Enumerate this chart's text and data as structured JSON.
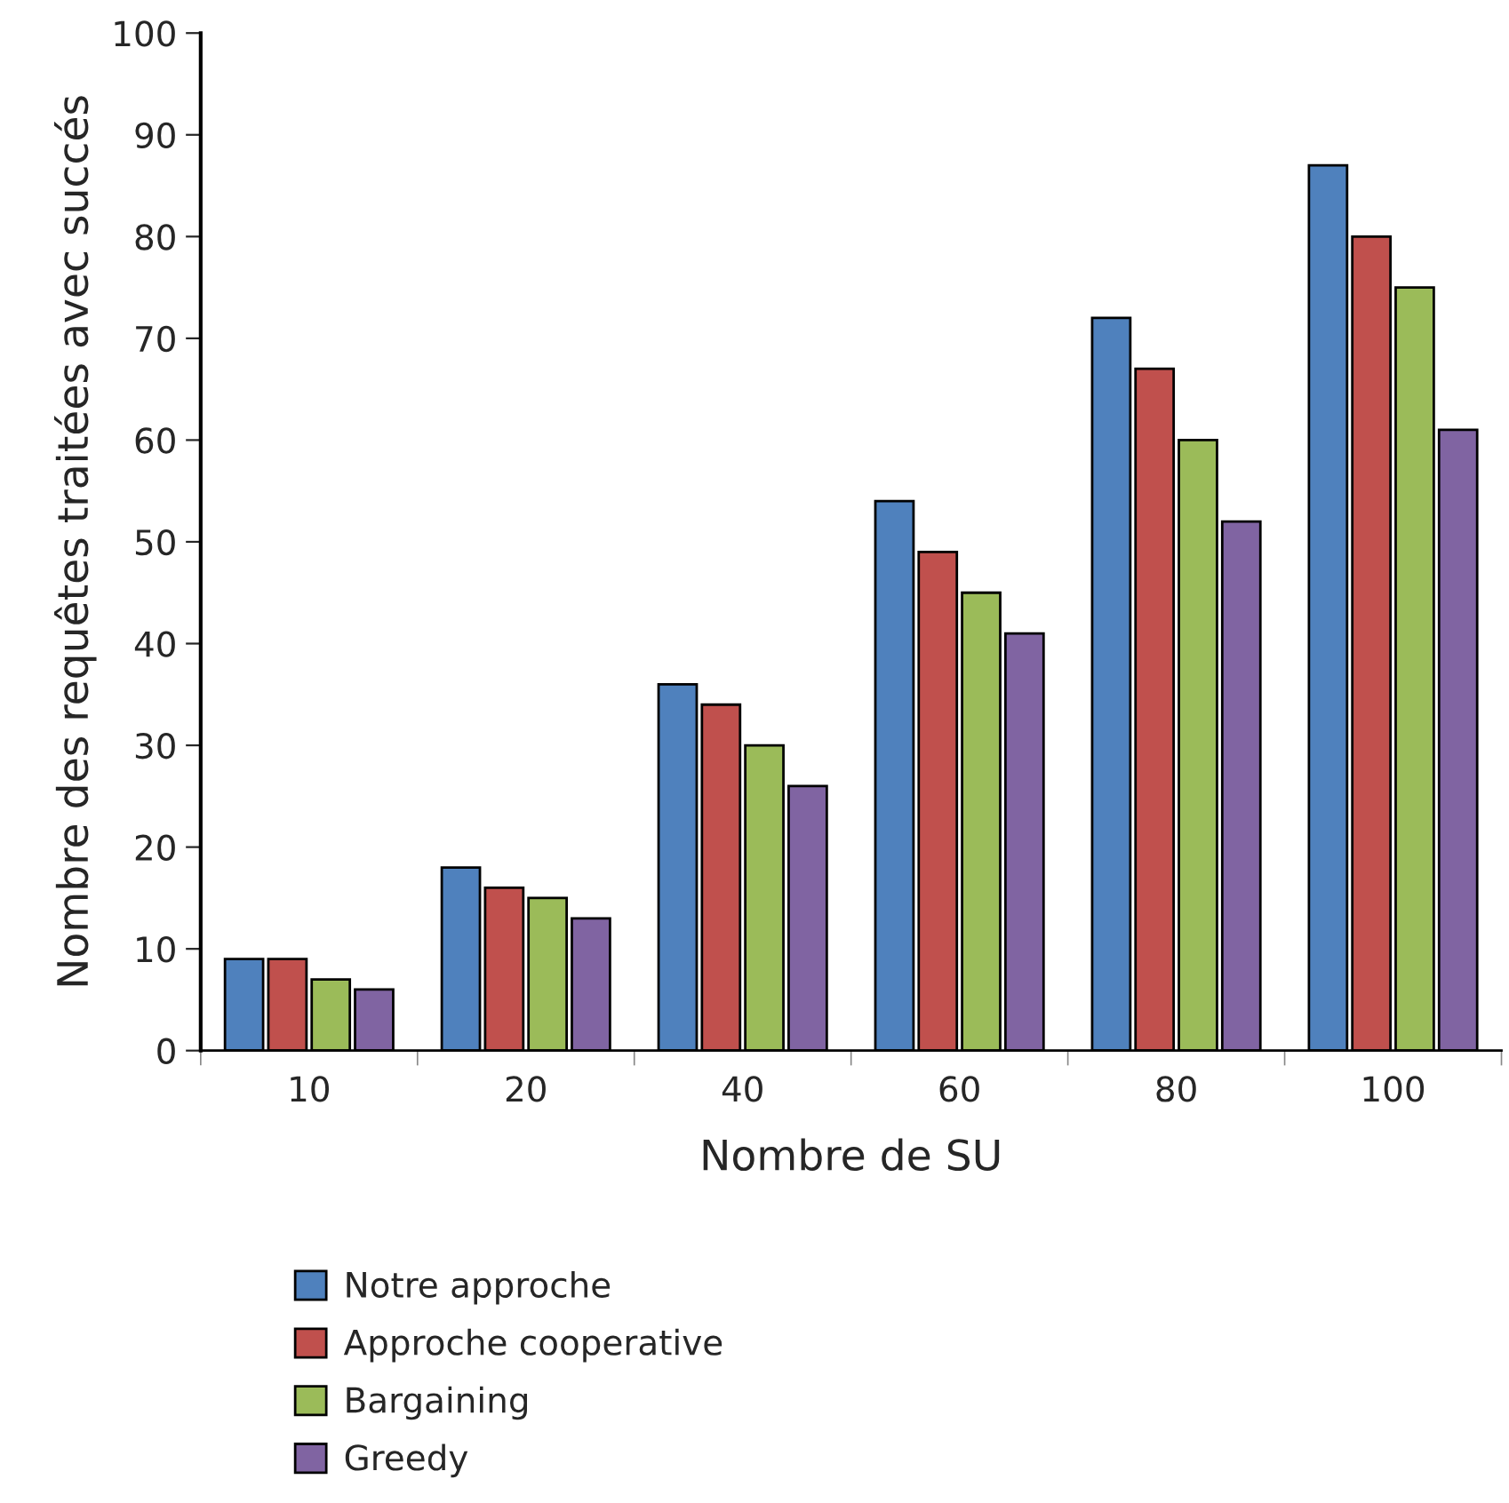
{
  "chart_data": {
    "type": "bar",
    "xlabel": "Nombre de SU",
    "ylabel": "Nombre des requêtes traitées avec succés",
    "categories": [
      "10",
      "20",
      "40",
      "60",
      "80",
      "100"
    ],
    "series": [
      {
        "name": "Notre approche",
        "color": "#4f81bd",
        "values": [
          9,
          18,
          36,
          54,
          72,
          87
        ]
      },
      {
        "name": "Approche cooperative",
        "color": "#c0504d",
        "values": [
          9,
          16,
          34,
          49,
          67,
          80
        ]
      },
      {
        "name": "Bargaining",
        "color": "#9bbb59",
        "values": [
          7,
          15,
          30,
          45,
          60,
          75
        ]
      },
      {
        "name": "Greedy",
        "color": "#8064a2",
        "values": [
          6,
          13,
          26,
          41,
          52,
          61
        ]
      }
    ],
    "ylim": [
      0,
      100
    ],
    "yticks": [
      0,
      10,
      20,
      30,
      40,
      50,
      60,
      70,
      80,
      90,
      100
    ],
    "grid": false,
    "legend": "bottom"
  }
}
